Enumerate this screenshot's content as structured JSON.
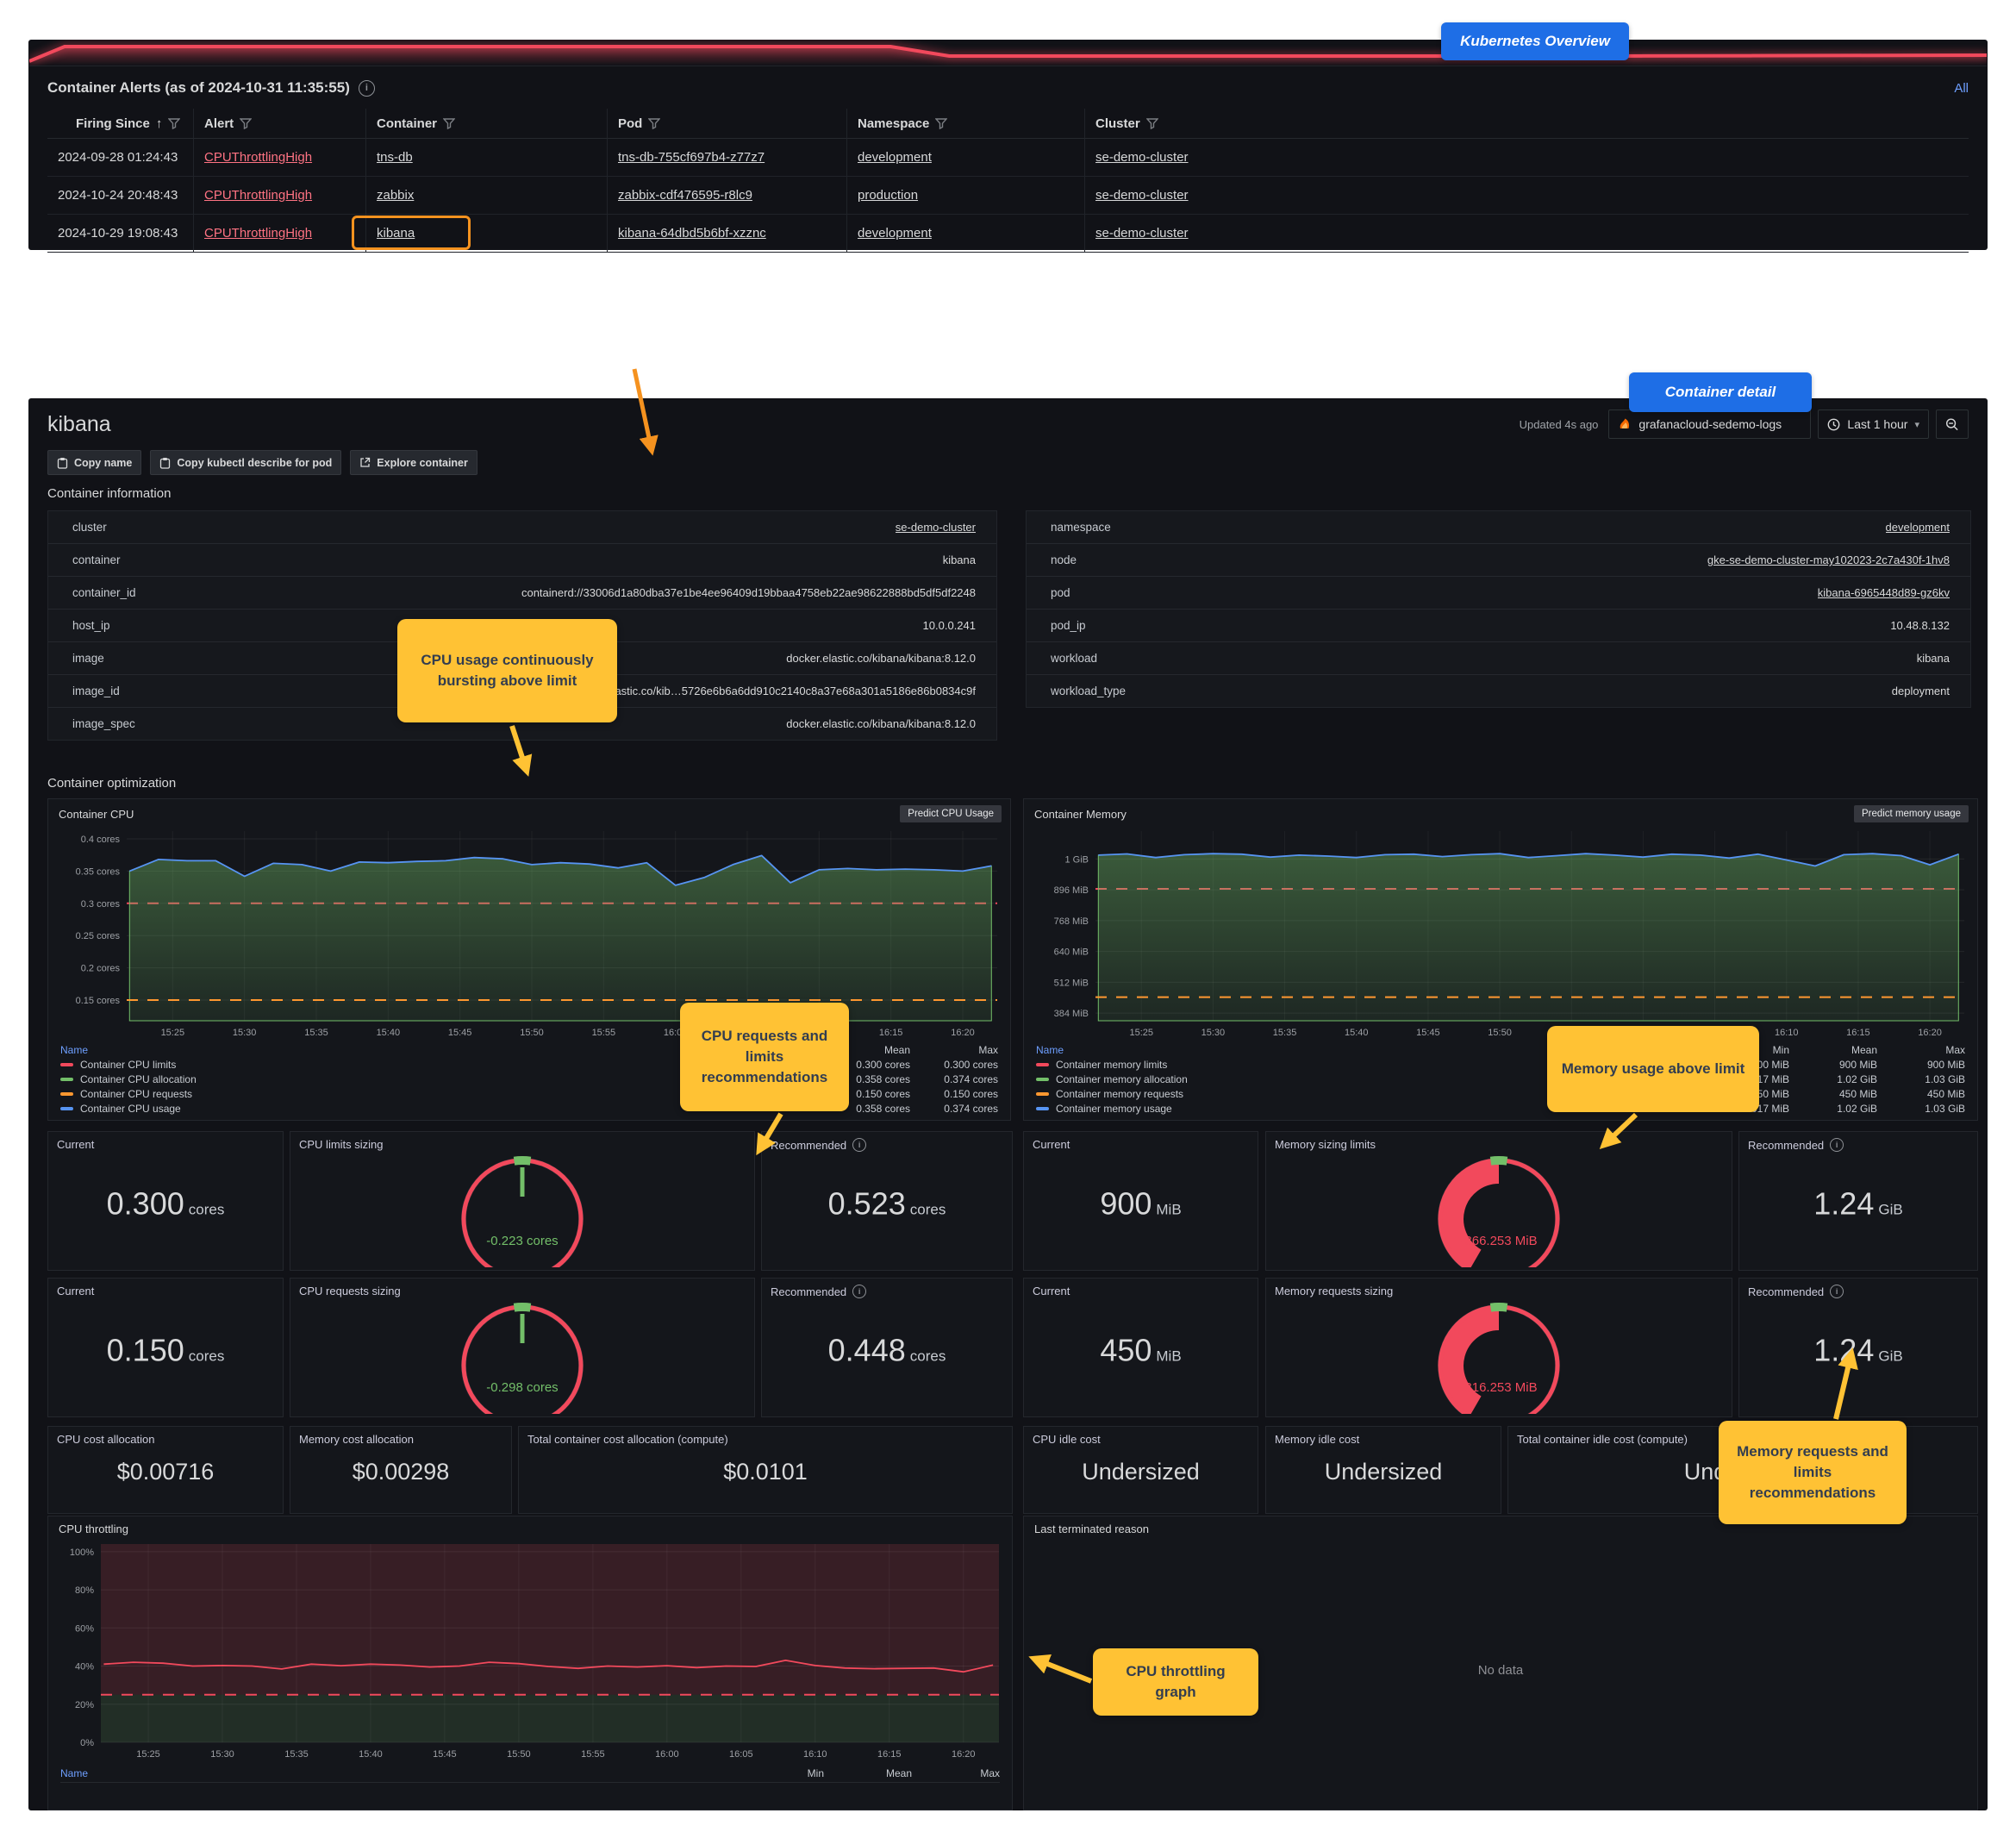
{
  "badges": {
    "kubernetes_overview": "Kubernetes Overview",
    "container_detail": "Container detail"
  },
  "callouts": {
    "cpu_bursting": "CPU usage continuously bursting above limit",
    "cpu_recs": "CPU requests and limits recommendations",
    "mem_above_limit": "Memory usage above limit",
    "mem_recs": "Memory requests and limits recommendations",
    "throttle_graph": "CPU throttling graph"
  },
  "alerts": {
    "title": "Container Alerts (as of 2024-10-31 11:35:55)",
    "all_link": "All",
    "columns": [
      "Firing Since",
      "Alert",
      "Container",
      "Pod",
      "Namespace",
      "Cluster"
    ],
    "rows": [
      {
        "firing_since": "2024-09-28 01:24:43",
        "alert": "CPUThrottlingHigh",
        "container": "tns-db",
        "pod": "tns-db-755cf697b4-z77z7",
        "namespace": "development",
        "cluster": "se-demo-cluster"
      },
      {
        "firing_since": "2024-10-24 20:48:43",
        "alert": "CPUThrottlingHigh",
        "container": "zabbix",
        "pod": "zabbix-cdf476595-r8lc9",
        "namespace": "production",
        "cluster": "se-demo-cluster"
      },
      {
        "firing_since": "2024-10-29 19:08:43",
        "alert": "CPUThrottlingHigh",
        "container": "kibana",
        "pod": "kibana-64dbd5b6bf-xzznc",
        "namespace": "development",
        "cluster": "se-demo-cluster"
      }
    ]
  },
  "detail": {
    "title": "kibana",
    "updated": "Updated 4s ago",
    "datasource": "grafanacloud-sedemo-logs",
    "time_range": "Last 1 hour",
    "toolbar": {
      "copy_name": "Copy name",
      "copy_kubectl": "Copy kubectl describe for pod",
      "explore": "Explore container"
    },
    "info_heading": "Container information",
    "optimization_heading": "Container optimization",
    "info_left": [
      {
        "label": "cluster",
        "value": "se-demo-cluster"
      },
      {
        "label": "container",
        "value": "kibana"
      },
      {
        "label": "container_id",
        "value": "containerd://33006d1a80dba37e1be4ee96409d19bbaa4758eb22ae98622888bd5df5df2248"
      },
      {
        "label": "host_ip",
        "value": "10.0.0.241"
      },
      {
        "label": "image",
        "value": "docker.elastic.co/kibana/kibana:8.12.0"
      },
      {
        "label": "image_id",
        "value": "docker.elastic.co/kib…5726e6b6a6dd910c2140c8a37e68a301a5186e86b0834c9f"
      },
      {
        "label": "image_spec",
        "value": "docker.elastic.co/kibana/kibana:8.12.0"
      }
    ],
    "info_right": [
      {
        "label": "namespace",
        "value": "development"
      },
      {
        "label": "node",
        "value": "gke-se-demo-cluster-may102023-2c7a430f-1hv8"
      },
      {
        "label": "pod",
        "value": "kibana-6965448d89-gz6kv"
      },
      {
        "label": "pod_ip",
        "value": "10.48.8.132"
      },
      {
        "label": "workload",
        "value": "kibana"
      },
      {
        "label": "workload_type",
        "value": "deployment"
      }
    ]
  },
  "optimization": {
    "cpu_current_limit": {
      "label": "Current",
      "value": "0.300",
      "unit": "cores"
    },
    "cpu_limits_sizing": {
      "label": "CPU limits sizing"
    },
    "cpu_rec_limit": {
      "label": "Recommended",
      "value": "0.523",
      "unit": "cores"
    },
    "mem_current_limit": {
      "label": "Current",
      "value": "900",
      "unit": "MiB"
    },
    "mem_limits_sizing": {
      "label": "Memory sizing limits"
    },
    "mem_rec_limit": {
      "label": "Recommended",
      "value": "1.24",
      "unit": "GiB"
    },
    "cpu_current_req": {
      "label": "Current",
      "value": "0.150",
      "unit": "cores"
    },
    "cpu_req_sizing": {
      "label": "CPU requests sizing"
    },
    "cpu_rec_req": {
      "label": "Recommended",
      "value": "0.448",
      "unit": "cores"
    },
    "mem_current_req": {
      "label": "Current",
      "value": "450",
      "unit": "MiB"
    },
    "mem_req_sizing": {
      "label": "Memory requests sizing"
    },
    "mem_rec_req": {
      "label": "Recommended",
      "value": "1.24",
      "unit": "GiB"
    },
    "costs": [
      {
        "label": "CPU cost allocation",
        "value": "$0.00716"
      },
      {
        "label": "Memory cost allocation",
        "value": "$0.00298"
      },
      {
        "label": "Total container cost allocation (compute)",
        "value": "$0.0101"
      },
      {
        "label": "CPU idle cost",
        "value": "Undersized"
      },
      {
        "label": "Memory idle cost",
        "value": "Undersized"
      },
      {
        "label": "Total container idle cost (compute)",
        "value": "Undersized"
      }
    ]
  },
  "gauges": {
    "cpu1": {
      "value": "-0.223 cores",
      "color": "#73BF69",
      "style": "needle"
    },
    "mem1": {
      "value": "-366.253 MiB",
      "color": "#F2495C",
      "style": "half"
    },
    "cpu2": {
      "value": "-0.298 cores",
      "color": "#73BF69",
      "style": "needle"
    },
    "mem2": {
      "value": "-816.253 MiB",
      "color": "#F2495C",
      "style": "half"
    }
  },
  "last_terminated": {
    "title": "Last terminated reason",
    "no_data": "No data"
  },
  "chart_data": [
    {
      "id": "sparkline",
      "type": "line",
      "color": "#F2495C",
      "points": [
        [
          0,
          25
        ],
        [
          1.8,
          8
        ],
        [
          44,
          8
        ],
        [
          47,
          19
        ],
        [
          80,
          19
        ],
        [
          100,
          18
        ]
      ]
    },
    {
      "id": "cpu",
      "type": "area",
      "title": "Container CPU",
      "button_label": "Predict CPU Usage",
      "x_domain": [
        921.8,
        982.4
      ],
      "x": [
        922,
        924,
        926,
        928,
        930,
        932,
        934,
        936,
        938,
        940,
        942,
        944,
        946,
        948,
        950,
        952,
        954,
        956,
        958,
        960,
        962,
        964,
        966,
        968,
        970,
        972,
        974,
        976,
        978,
        980,
        982
      ],
      "xticks": {
        "values": [
          925,
          930,
          935,
          940,
          945,
          950,
          955,
          960,
          965,
          970,
          975,
          980
        ],
        "labels": [
          "15:25",
          "15:30",
          "15:35",
          "15:40",
          "15:45",
          "15:50",
          "15:55",
          "16:00",
          "16:05",
          "16:10",
          "16:15",
          "16:20"
        ]
      },
      "ylim": [
        0.118,
        0.412
      ],
      "yticks": {
        "values": [
          0.4,
          0.35,
          0.3,
          0.25,
          0.2,
          0.15
        ],
        "labels": [
          "0.4 cores",
          "0.35 cores",
          "0.3 cores",
          "0.25 cores",
          "0.2 cores",
          "0.15 cores"
        ]
      },
      "gutter": 84,
      "series": [
        {
          "name": "Container CPU limits",
          "color": "#F2495C",
          "dash": true,
          "const": 0.3
        },
        {
          "name": "Container CPU allocation",
          "color": "#73BF69",
          "area": true,
          "values": [
            0.35,
            0.368,
            0.366,
            0.366,
            0.342,
            0.362,
            0.36,
            0.35,
            0.364,
            0.363,
            0.365,
            0.366,
            0.371,
            0.369,
            0.36,
            0.363,
            0.361,
            0.355,
            0.363,
            0.328,
            0.34,
            0.36,
            0.374,
            0.332,
            0.352,
            0.354,
            0.352,
            0.353,
            0.352,
            0.35,
            0.358
          ]
        },
        {
          "name": "Container CPU requests",
          "color": "#FF9830",
          "dash": true,
          "const": 0.15
        },
        {
          "name": "Container CPU usage",
          "color": "#5794F2",
          "values": [
            0.35,
            0.368,
            0.366,
            0.366,
            0.342,
            0.362,
            0.36,
            0.35,
            0.364,
            0.363,
            0.365,
            0.366,
            0.371,
            0.369,
            0.36,
            0.363,
            0.361,
            0.355,
            0.363,
            0.328,
            0.34,
            0.36,
            0.374,
            0.332,
            0.352,
            0.354,
            0.352,
            0.353,
            0.352,
            0.35,
            0.358
          ]
        }
      ],
      "legend": {
        "cols": [
          "Mean",
          "Max"
        ],
        "rows": [
          {
            "color": "#F2495C",
            "name": "Container CPU limits",
            "vals": [
              "0.300 cores",
              "0.300 cores"
            ]
          },
          {
            "color": "#73BF69",
            "name": "Container CPU allocation",
            "vals": [
              "0.358 cores",
              "0.374 cores"
            ]
          },
          {
            "color": "#FF9830",
            "name": "Container CPU requests",
            "vals": [
              "0.150 cores",
              "0.150 cores"
            ]
          },
          {
            "color": "#5794F2",
            "name": "Container CPU usage",
            "vals": [
              "0.358 cores",
              "0.374 cores"
            ]
          }
        ]
      }
    },
    {
      "id": "mem",
      "type": "area",
      "title": "Container Memory",
      "button_label": "Predict memory usage",
      "x_domain": [
        921.8,
        982.4
      ],
      "x": [
        922,
        924,
        926,
        928,
        930,
        932,
        934,
        936,
        938,
        940,
        942,
        944,
        946,
        948,
        950,
        952,
        954,
        956,
        958,
        960,
        962,
        964,
        966,
        968,
        970,
        972,
        974,
        976,
        978,
        980,
        982
      ],
      "xticks": {
        "values": [
          925,
          930,
          935,
          940,
          945,
          950,
          955,
          960,
          965,
          970,
          975,
          980
        ],
        "labels": [
          "15:25",
          "15:30",
          "15:35",
          "15:40",
          "15:45",
          "15:50",
          "15:55",
          "16:00",
          "16:05",
          "16:10",
          "16:15",
          "16:20"
        ]
      },
      "ylim": [
        352,
        1140
      ],
      "yticks": {
        "values": [
          1024,
          896,
          768,
          640,
          512,
          384
        ],
        "labels": [
          "1 GiB",
          "896 MiB",
          "768 MiB",
          "640 MiB",
          "512 MiB",
          "384 MiB"
        ]
      },
      "gutter": 76,
      "series": [
        {
          "name": "Container memory limits",
          "color": "#F2495C",
          "dash": true,
          "const": 900
        },
        {
          "name": "Container memory allocation",
          "color": "#73BF69",
          "area": true,
          "values": [
            1040,
            1045,
            1030,
            1042,
            1046,
            1044,
            1032,
            1040,
            1036,
            1030,
            1042,
            1044,
            1034,
            1042,
            1046,
            1030,
            1038,
            1046,
            1040,
            1032,
            1044,
            1040,
            1028,
            1044,
            1020,
            995,
            1042,
            1046,
            1038,
            1000,
            1044
          ]
        },
        {
          "name": "Container memory requests",
          "color": "#FF9830",
          "dash": true,
          "const": 450
        },
        {
          "name": "Container memory usage",
          "color": "#5794F2",
          "values": [
            1040,
            1045,
            1030,
            1042,
            1046,
            1044,
            1032,
            1040,
            1036,
            1030,
            1042,
            1044,
            1034,
            1042,
            1046,
            1030,
            1038,
            1046,
            1040,
            1032,
            1044,
            1040,
            1028,
            1044,
            1020,
            995,
            1042,
            1046,
            1038,
            1000,
            1044
          ]
        }
      ],
      "legend": {
        "cols": [
          "Min",
          "Mean",
          "Max"
        ],
        "rows": [
          {
            "color": "#F2495C",
            "name": "Container memory limits",
            "vals": [
              "900 MiB",
              "900 MiB",
              "900 MiB"
            ]
          },
          {
            "color": "#73BF69",
            "name": "Container memory allocation",
            "vals": [
              "1017 MiB",
              "1.02 GiB",
              "1.03 GiB"
            ]
          },
          {
            "color": "#FF9830",
            "name": "Container memory requests",
            "vals": [
              "450 MiB",
              "450 MiB",
              "450 MiB"
            ]
          },
          {
            "color": "#5794F2",
            "name": "Container memory usage",
            "vals": [
              "1017 MiB",
              "1.02 GiB",
              "1.03 GiB"
            ]
          }
        ]
      }
    },
    {
      "id": "throttle",
      "type": "line",
      "title": "CPU throttling",
      "x_domain": [
        921.8,
        982.4
      ],
      "x": [
        922,
        924,
        926,
        928,
        930,
        932,
        934,
        936,
        938,
        940,
        942,
        944,
        946,
        948,
        950,
        952,
        954,
        956,
        958,
        960,
        962,
        964,
        966,
        968,
        970,
        972,
        974,
        976,
        978,
        980,
        982
      ],
      "xticks": {
        "values": [
          925,
          930,
          935,
          940,
          945,
          950,
          955,
          960,
          965,
          970,
          975,
          980
        ],
        "labels": [
          "15:25",
          "15:30",
          "15:35",
          "15:40",
          "15:45",
          "15:50",
          "15:55",
          "16:00",
          "16:05",
          "16:10",
          "16:15",
          "16:20"
        ]
      },
      "ylim": [
        0,
        104
      ],
      "yticks": {
        "values": [
          100,
          80,
          60,
          40,
          20,
          0
        ],
        "labels": [
          "100%",
          "80%",
          "60%",
          "40%",
          "20%",
          "0%"
        ]
      },
      "gutter": 54,
      "zones": [
        {
          "from": 25,
          "to": 104,
          "color": "rgba(242,73,92,0.16)"
        },
        {
          "from": 0,
          "to": 25,
          "color": "rgba(115,191,105,0.15)"
        }
      ],
      "series": [
        {
          "name": "throttle threshold",
          "color": "#F2495C",
          "dash": true,
          "const": 25
        },
        {
          "name": "Container CPU throttling",
          "color": "#F2495C",
          "values": [
            41,
            42,
            41.5,
            40,
            40.3,
            40,
            38.5,
            41,
            40.2,
            41,
            40.5,
            39.5,
            40,
            42,
            41.3,
            39.8,
            38.8,
            40,
            39.5,
            40.2,
            39.2,
            40,
            39.8,
            43,
            40.3,
            39,
            38.6,
            38.8,
            39,
            37,
            40.5
          ]
        }
      ],
      "legend": {
        "cols": [
          "Min",
          "Mean",
          "Max"
        ],
        "rows": []
      }
    }
  ]
}
